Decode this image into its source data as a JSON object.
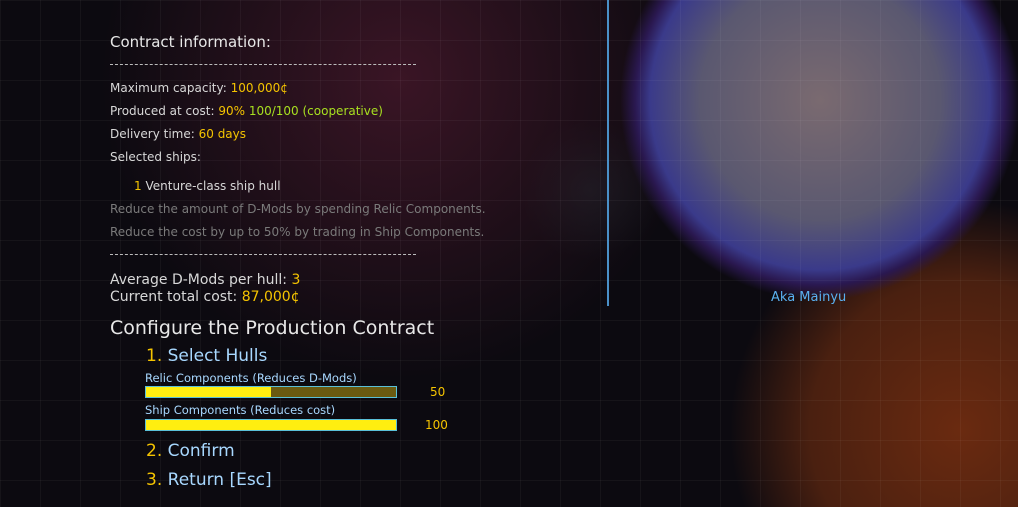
{
  "info": {
    "title": "Contract information:",
    "max_cap_label": "Maximum capacity:",
    "max_cap": "100,000¢",
    "cost_label": "Produced at cost:",
    "cost_pct": "90%",
    "cost_rel": "100/100 (cooperative)",
    "delivery_label": "Delivery time:",
    "delivery": "60 days",
    "ships_label": "Selected ships:",
    "ship_count": "1",
    "ship_name": "Venture-class ship hull",
    "hint1": "Reduce the amount of D-Mods by spending Relic Components.",
    "hint2": "Reduce the cost by up to 50% by trading in Ship Components.",
    "dmods_label": "Average D-Mods per hull:",
    "dmods": "3",
    "total_label": "Current total cost:",
    "total": "87,000¢"
  },
  "planet": {
    "name": "Aka Mainyu"
  },
  "config": {
    "title": "Configure the Production Contract",
    "opt1_num": "1.",
    "opt1": "Select Hulls",
    "relic_label": "Relic Components (Reduces D-Mods)",
    "relic_value": "50",
    "relic_fill_percent": 50,
    "ship_label": "Ship Components (Reduces cost)",
    "ship_value": "100",
    "ship_fill_percent": 100,
    "opt2_num": "2.",
    "opt2": "Confirm",
    "opt3_num": "3.",
    "opt3": "Return [Esc]"
  }
}
